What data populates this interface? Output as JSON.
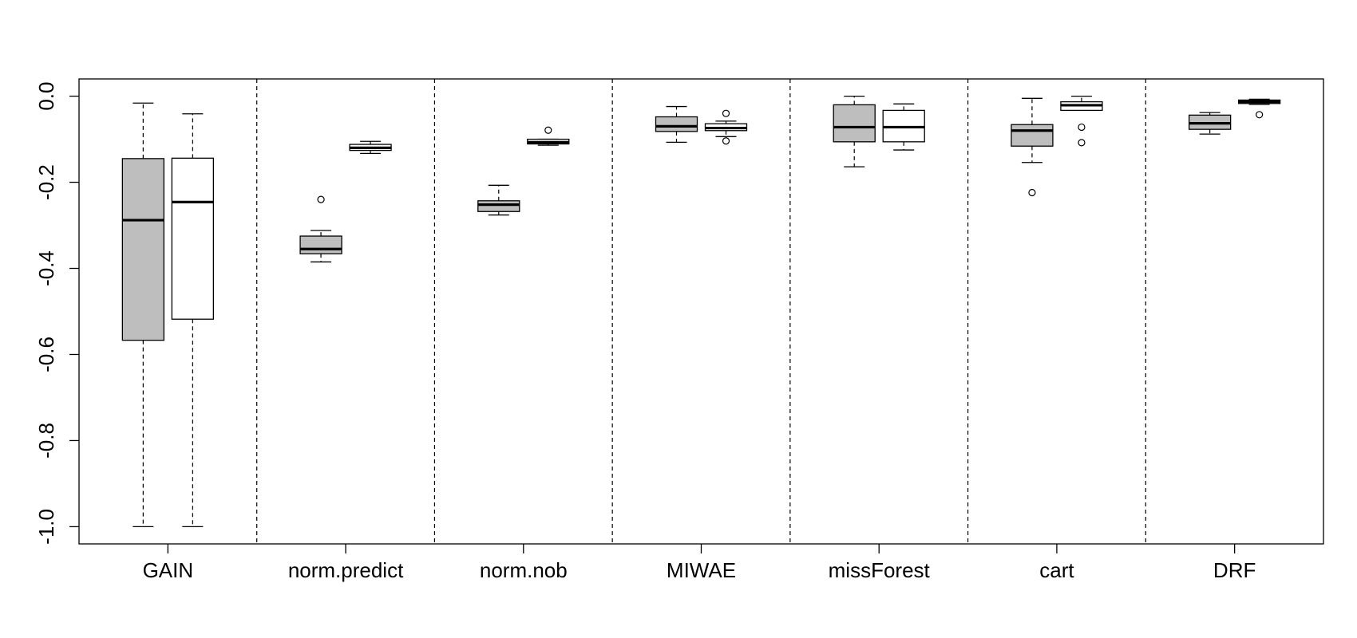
{
  "chart_data": {
    "type": "boxplot",
    "title": "",
    "xlabel": "",
    "ylabel": "",
    "ylim": [
      -1.04,
      0.04
    ],
    "yticks": [
      0.0,
      -0.2,
      -0.4,
      -0.6,
      -0.8,
      -1.0
    ],
    "ytick_labels": [
      "0.0",
      "-0.2",
      "-0.4",
      "-0.6",
      "-0.8",
      "-1.0"
    ],
    "grid": false,
    "group_separators": "dashed vertical lines between groups",
    "fill_colors": [
      "#bebebe",
      "#ffffff"
    ],
    "categories": [
      "GAIN",
      "norm.predict",
      "norm.nob",
      "MIWAE",
      "missForest",
      "cart",
      "DRF"
    ],
    "groups": [
      {
        "label": "GAIN",
        "boxes": [
          {
            "fill": "#bebebe",
            "whisker_low": -1.0,
            "q1": -0.567,
            "median": -0.288,
            "q3": -0.145,
            "whisker_high": -0.016,
            "outliers": []
          },
          {
            "fill": "#ffffff",
            "whisker_low": -1.0,
            "q1": -0.518,
            "median": -0.246,
            "q3": -0.144,
            "whisker_high": -0.041,
            "outliers": []
          }
        ]
      },
      {
        "label": "norm.predict",
        "boxes": [
          {
            "fill": "#bebebe",
            "whisker_low": -0.385,
            "q1": -0.366,
            "median": -0.355,
            "q3": -0.325,
            "whisker_high": -0.312,
            "outliers": [
              -0.24
            ]
          },
          {
            "fill": "#ffffff",
            "whisker_low": -0.133,
            "q1": -0.126,
            "median": -0.12,
            "q3": -0.112,
            "whisker_high": -0.105,
            "outliers": []
          }
        ]
      },
      {
        "label": "norm.nob",
        "boxes": [
          {
            "fill": "#bebebe",
            "whisker_low": -0.276,
            "q1": -0.268,
            "median": -0.252,
            "q3": -0.243,
            "whisker_high": -0.207,
            "outliers": []
          },
          {
            "fill": "#ffffff",
            "whisker_low": -0.114,
            "q1": -0.111,
            "median": -0.107,
            "q3": -0.1,
            "whisker_high": -0.1,
            "outliers": [
              -0.079
            ]
          }
        ]
      },
      {
        "label": "MIWAE",
        "boxes": [
          {
            "fill": "#bebebe",
            "whisker_low": -0.107,
            "q1": -0.082,
            "median": -0.07,
            "q3": -0.048,
            "whisker_high": -0.024,
            "outliers": []
          },
          {
            "fill": "#ffffff",
            "whisker_low": -0.094,
            "q1": -0.08,
            "median": -0.074,
            "q3": -0.064,
            "whisker_high": -0.058,
            "outliers": [
              -0.04,
              -0.104
            ]
          }
        ]
      },
      {
        "label": "missForest",
        "boxes": [
          {
            "fill": "#bebebe",
            "whisker_low": -0.164,
            "q1": -0.106,
            "median": -0.072,
            "q3": -0.02,
            "whisker_high": 0.0,
            "outliers": []
          },
          {
            "fill": "#ffffff",
            "whisker_low": -0.125,
            "q1": -0.106,
            "median": -0.072,
            "q3": -0.033,
            "whisker_high": -0.018,
            "outliers": []
          }
        ]
      },
      {
        "label": "cart",
        "boxes": [
          {
            "fill": "#bebebe",
            "whisker_low": -0.154,
            "q1": -0.116,
            "median": -0.08,
            "q3": -0.066,
            "whisker_high": -0.005,
            "outliers": [
              -0.224
            ]
          },
          {
            "fill": "#ffffff",
            "whisker_low": -0.033,
            "q1": -0.033,
            "median": -0.021,
            "q3": -0.013,
            "whisker_high": 0.0,
            "outliers": [
              -0.072,
              -0.108
            ]
          }
        ]
      },
      {
        "label": "DRF",
        "boxes": [
          {
            "fill": "#bebebe",
            "whisker_low": -0.088,
            "q1": -0.077,
            "median": -0.063,
            "q3": -0.044,
            "whisker_high": -0.038,
            "outliers": []
          },
          {
            "fill": "#ffffff",
            "whisker_low": -0.019,
            "q1": -0.017,
            "median": -0.013,
            "q3": -0.009,
            "whisker_high": -0.007,
            "outliers": [
              -0.043
            ]
          }
        ]
      }
    ]
  }
}
